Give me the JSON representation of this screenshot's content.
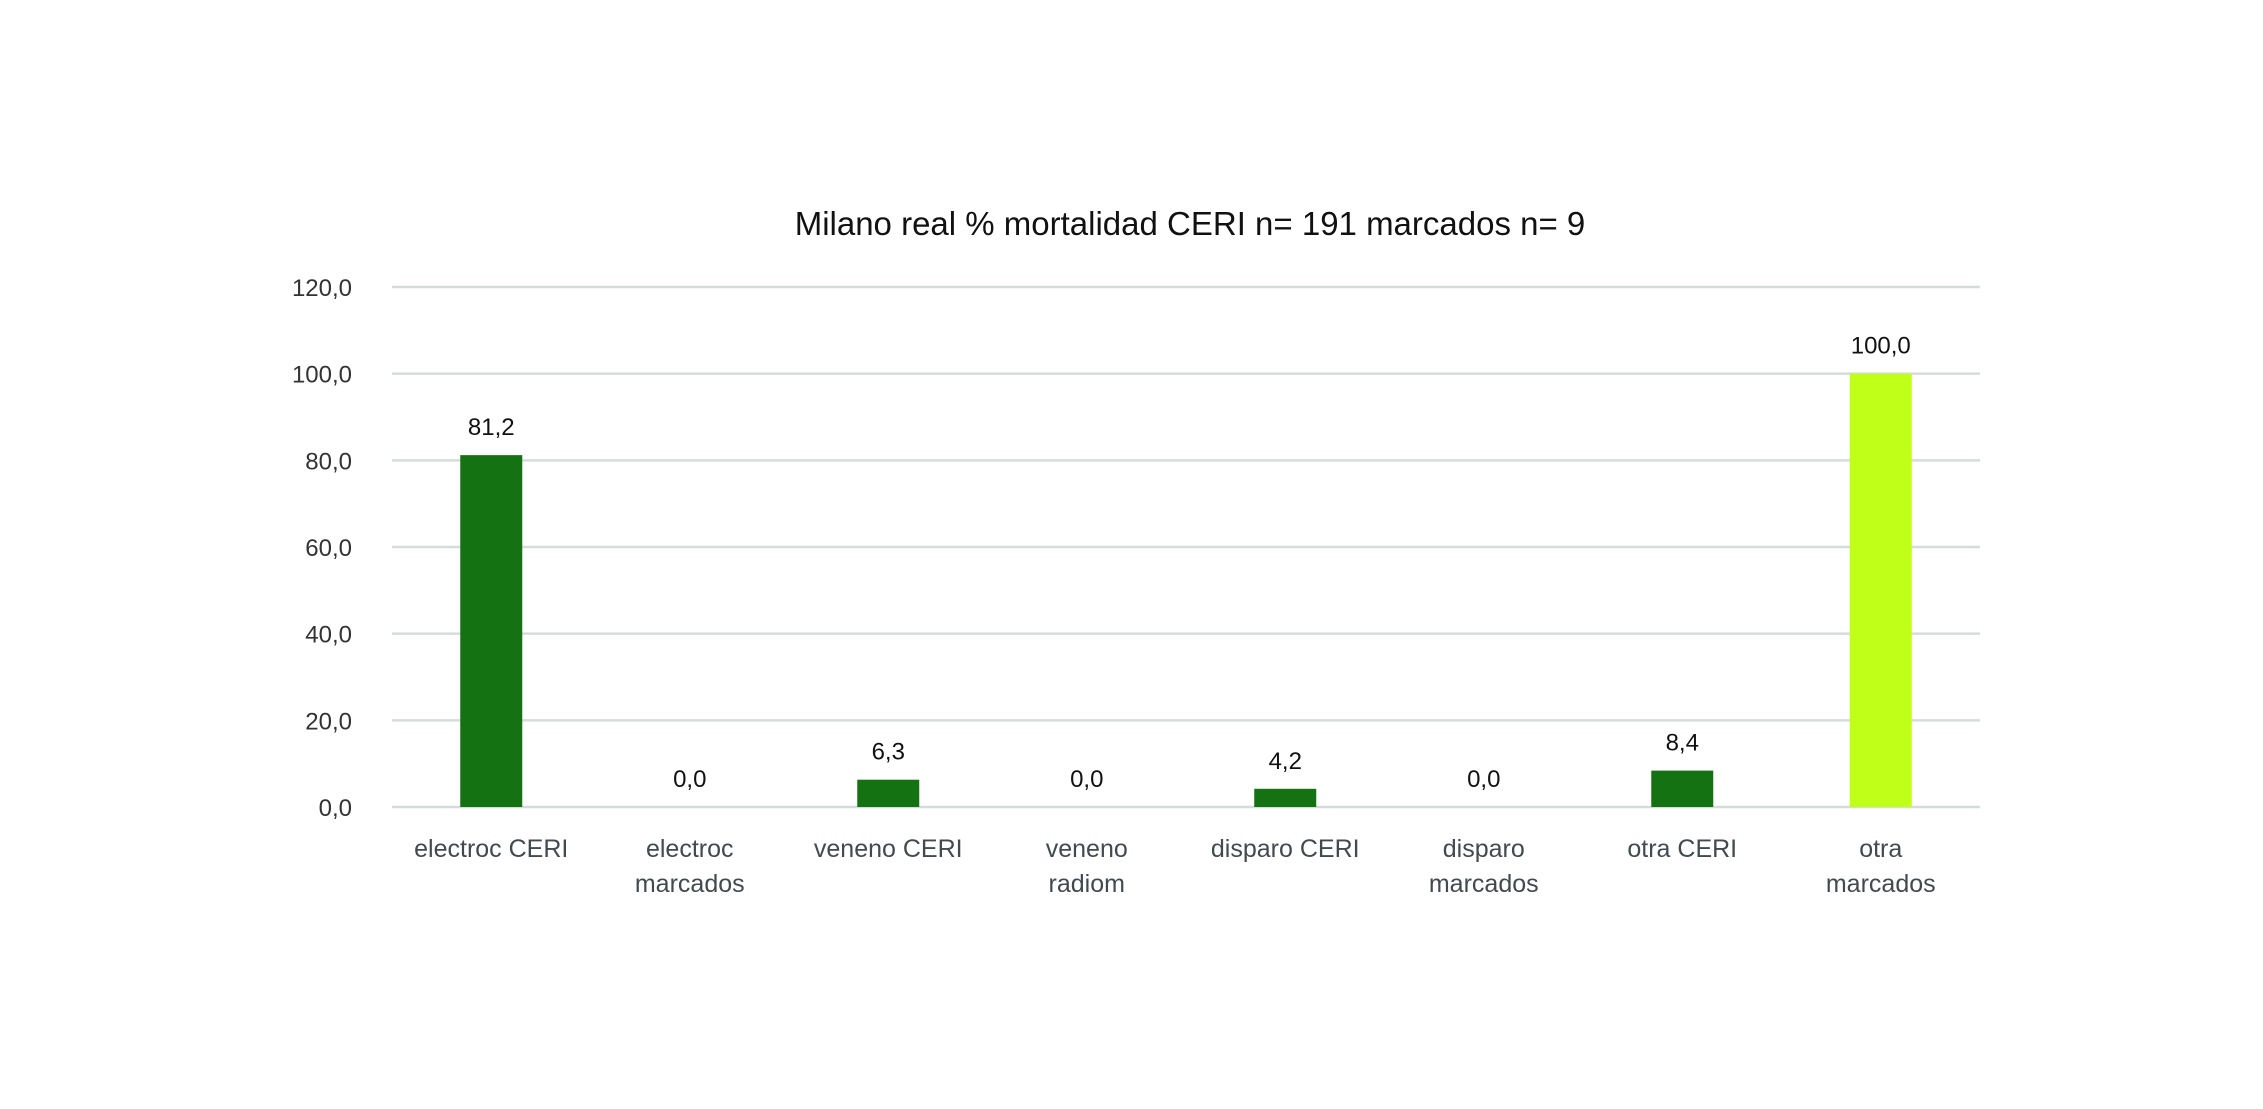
{
  "chart_data": {
    "type": "bar",
    "title": "Milano real % mortalidad CERI n= 191 marcados n= 9",
    "categories": [
      [
        "electroc CERI"
      ],
      [
        "electroc",
        "marcados"
      ],
      [
        "veneno CERI"
      ],
      [
        "veneno",
        "radiom"
      ],
      [
        "disparo CERI"
      ],
      [
        "disparo",
        "marcados"
      ],
      [
        "otra CERI"
      ],
      [
        "otra",
        "marcados"
      ]
    ],
    "values": [
      81.2,
      0.0,
      6.3,
      0.0,
      4.2,
      0.0,
      8.4,
      100.0
    ],
    "value_labels": [
      "81,2",
      "0,0",
      "6,3",
      "0,0",
      "4,2",
      "0,0",
      "8,4",
      "100,0"
    ],
    "bar_colors": [
      "#157213",
      "#157213",
      "#157213",
      "#157213",
      "#157213",
      "#157213",
      "#157213",
      "#c0ff17"
    ],
    "ylim": [
      0,
      120
    ],
    "yticks": [
      0,
      20,
      40,
      60,
      80,
      100,
      120
    ],
    "ytick_labels": [
      "0,0",
      "20,0",
      "40,0",
      "60,0",
      "80,0",
      "100,0",
      "120,0"
    ],
    "xlabel": "",
    "ylabel": "",
    "grid": true,
    "legend": "none",
    "colors": {
      "gridline": "#d5dcdc",
      "axis_text": "#333333",
      "category_text": "#404a4f",
      "title_text": "#111111"
    }
  }
}
